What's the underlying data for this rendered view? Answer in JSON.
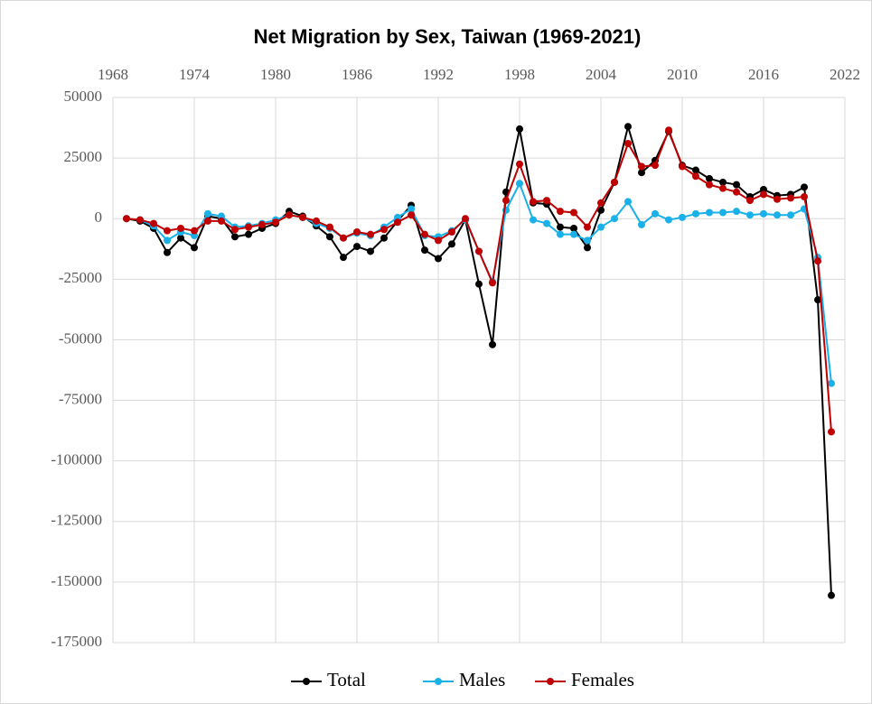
{
  "chart_data": {
    "type": "line",
    "title": "Net Migration by Sex, Taiwan (1969-2021)",
    "x": [
      1969,
      1970,
      1971,
      1972,
      1973,
      1974,
      1975,
      1976,
      1977,
      1978,
      1979,
      1980,
      1981,
      1982,
      1983,
      1984,
      1985,
      1986,
      1987,
      1988,
      1989,
      1990,
      1991,
      1992,
      1993,
      1994,
      1995,
      1996,
      1997,
      1998,
      1999,
      2000,
      2001,
      2002,
      2003,
      2004,
      2005,
      2006,
      2007,
      2008,
      2009,
      2010,
      2011,
      2012,
      2013,
      2014,
      2015,
      2016,
      2017,
      2018,
      2019,
      2020,
      2021
    ],
    "series": [
      {
        "name": "Total",
        "color": "#000000",
        "values": [
          0,
          -1000,
          -4000,
          -14000,
          -8000,
          -12000,
          1000,
          0,
          -7500,
          -6500,
          -4000,
          -2000,
          3000,
          1000,
          -3000,
          -7500,
          -16000,
          -11500,
          -13500,
          -8000,
          -1000,
          5500,
          -13000,
          -16500,
          -10500,
          -500,
          -27000,
          -52000,
          11000,
          37000,
          6500,
          6000,
          -3500,
          -4000,
          -12000,
          3500,
          15000,
          38000,
          19000,
          24000,
          36000,
          22000,
          20000,
          16500,
          15000,
          14000,
          9000,
          12000,
          9500,
          10000,
          13000,
          -33500,
          -155500
        ]
      },
      {
        "name": "Males",
        "color": "#1ab0e8",
        "values": [
          0,
          -500,
          -3000,
          -9000,
          -5500,
          -7000,
          2000,
          1000,
          -3500,
          -3000,
          -2000,
          -500,
          1500,
          500,
          -2000,
          -4000,
          -8000,
          -6000,
          -7000,
          -3500,
          500,
          4000,
          -7000,
          -7500,
          -5000,
          -500,
          -13500,
          -26000,
          3500,
          14500,
          -500,
          -2000,
          -6500,
          -6500,
          -9000,
          -3500,
          0,
          7000,
          -2500,
          2000,
          -500,
          500,
          2000,
          2500,
          2500,
          3000,
          1500,
          2000,
          1500,
          1500,
          4000,
          -16000,
          -68000
        ]
      },
      {
        "name": "Females",
        "color": "#c00000",
        "values": [
          0,
          -500,
          -2000,
          -5000,
          -4000,
          -5000,
          -1000,
          -1000,
          -4500,
          -3500,
          -2500,
          -1500,
          1500,
          500,
          -1000,
          -3500,
          -8000,
          -5500,
          -6500,
          -4500,
          -1500,
          1500,
          -6500,
          -9000,
          -5500,
          0,
          -13500,
          -26500,
          7500,
          22500,
          7000,
          7500,
          3000,
          2500,
          -3500,
          6500,
          15000,
          31000,
          21500,
          22000,
          36500,
          21500,
          17500,
          14000,
          12500,
          11000,
          7500,
          10000,
          8000,
          8500,
          9000,
          -17500,
          -88000
        ]
      }
    ],
    "xlim": [
      1968,
      2022
    ],
    "xticks": [
      1968,
      1974,
      1980,
      1986,
      1992,
      1998,
      2004,
      2010,
      2016,
      2022
    ],
    "ylim": [
      -175000,
      50000
    ],
    "yticks": [
      -175000,
      -150000,
      -125000,
      -100000,
      -75000,
      -50000,
      -25000,
      0,
      25000,
      50000
    ],
    "grid": true,
    "legend": "bottom"
  }
}
